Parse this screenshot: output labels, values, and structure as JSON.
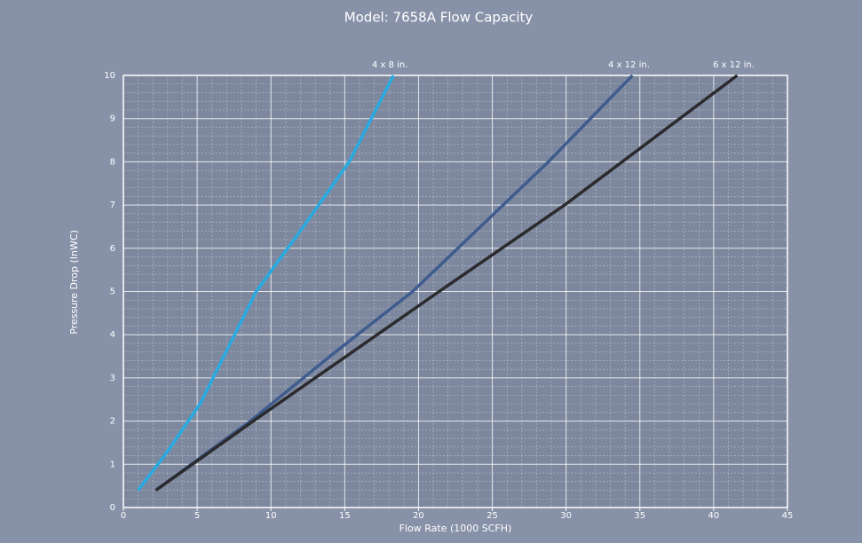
{
  "chart_data": {
    "type": "line",
    "title": "Model: 7658A Flow Capacity",
    "x_label": "Flow Rate (1000 SCFH)",
    "y_label": "Pressure Drop (InWC)",
    "xlim": [
      0,
      45
    ],
    "xticks": [
      0,
      5,
      10,
      15,
      20,
      25,
      30,
      35,
      40,
      45
    ],
    "ylim": [
      0,
      10
    ],
    "yticks": [
      0,
      1,
      2,
      3,
      4,
      5,
      6,
      7,
      8,
      9,
      10
    ],
    "grid": true,
    "series": [
      {
        "name": "4 x 8 in.",
        "color": "#29aae1",
        "x": [
          1,
          3,
          5.2,
          9,
          12.2,
          15.3,
          18.3
        ],
        "values": [
          0.4,
          1.3,
          2.4,
          5,
          6.5,
          8,
          10
        ]
      },
      {
        "name": "4 x 12 in.",
        "color": "#3f5c8e",
        "x": [
          2.2,
          8.6,
          14,
          19.6,
          28.8,
          34.5
        ],
        "values": [
          0.4,
          2,
          3.5,
          5,
          8,
          10
        ]
      },
      {
        "name": "6 x 12 in.",
        "color": "#2b2b2e",
        "x": [
          2.2,
          8.8,
          21.4,
          29.9,
          41.6
        ],
        "values": [
          0.4,
          2,
          5,
          7,
          10
        ]
      }
    ]
  }
}
